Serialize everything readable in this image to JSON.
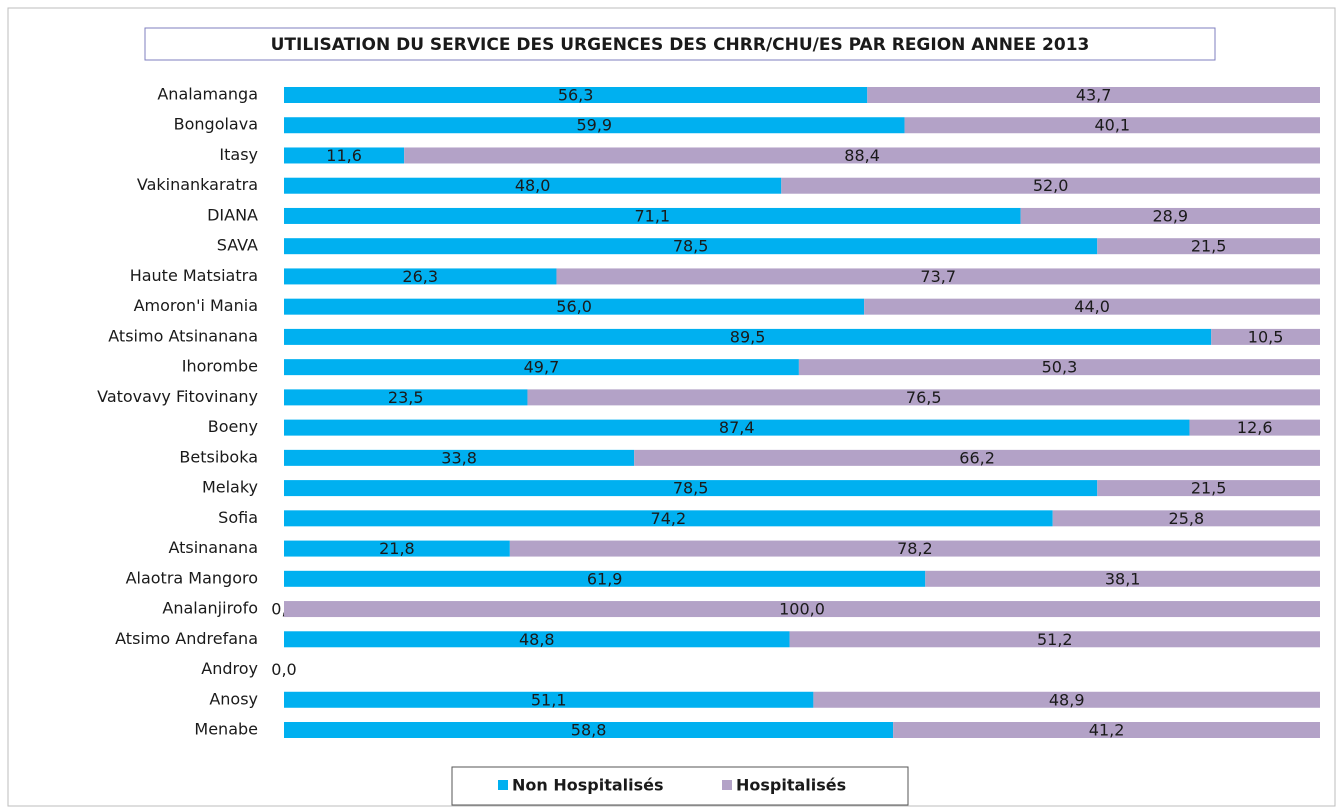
{
  "chart_data": {
    "type": "stacked_barh",
    "title": "UTILISATION DU SERVICE DES URGENCES DES CHRR/CHU/ES PAR REGION ANNEE 2013",
    "categories": [
      "Analamanga",
      "Bongolava",
      "Itasy",
      "Vakinankaratra",
      "DIANA",
      "SAVA",
      "Haute Matsiatra",
      "Amoron'i Mania",
      "Atsimo Atsinanana",
      "Ihorombe",
      "Vatovavy Fitovinany",
      "Boeny",
      "Betsiboka",
      "Melaky",
      "Sofia",
      "Atsinanana",
      "Alaotra Mangoro",
      "Analanjirofo",
      "Atsimo Andrefana",
      "Androy",
      "Anosy",
      "Menabe"
    ],
    "series": [
      {
        "name": "Non Hospitalisés",
        "color": "#00b0f0",
        "values": [
          56.3,
          59.9,
          11.6,
          48.0,
          71.1,
          78.5,
          26.3,
          56.0,
          89.5,
          49.7,
          23.5,
          87.4,
          33.8,
          78.5,
          74.2,
          21.8,
          61.9,
          0.0,
          48.8,
          0.0,
          51.1,
          58.8
        ],
        "value_labels": [
          "56,3",
          "59,9",
          "11,6",
          "48,0",
          "71,1",
          "78,5",
          "26,3",
          "56,0",
          "89,5",
          "49,7",
          "23,5",
          "87,4",
          "33,8",
          "78,5",
          "74,2",
          "21,8",
          "61,9",
          "0,0",
          "48,8",
          "0,0",
          "51,1",
          "58,8"
        ]
      },
      {
        "name": "Hospitalisés",
        "color": "#b3a2c7",
        "values": [
          43.7,
          40.1,
          88.4,
          52.0,
          28.9,
          21.5,
          73.7,
          44.0,
          10.5,
          50.3,
          76.5,
          12.6,
          66.2,
          21.5,
          25.8,
          78.2,
          38.1,
          100.0,
          51.2,
          null,
          48.9,
          41.2
        ],
        "value_labels": [
          "43,7",
          "40,1",
          "88,4",
          "52,0",
          "28,9",
          "21,5",
          "73,7",
          "44,0",
          "10,5",
          "50,3",
          "76,5",
          "12,6",
          "66,2",
          "21,5",
          "25,8",
          "78,2",
          "38,1",
          "100,0",
          "51,2",
          null,
          "48,9",
          "41,2"
        ]
      }
    ],
    "xlim": [
      0,
      100
    ],
    "legend": "bottom"
  }
}
